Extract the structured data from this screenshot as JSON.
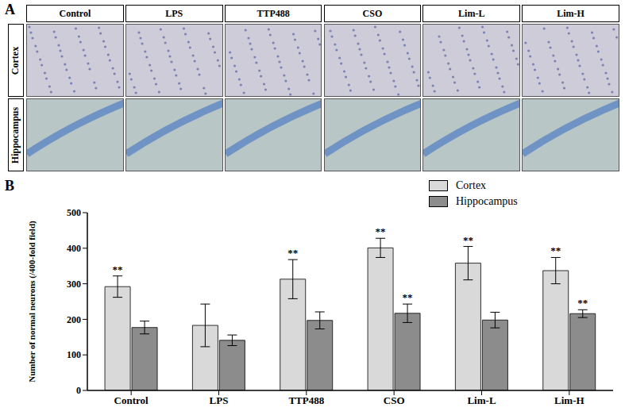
{
  "panel_a": {
    "letter": "A",
    "columns": [
      "Control",
      "LPS",
      "TTP488",
      "CSO",
      "Lim-L",
      "Lim-H"
    ],
    "rows": [
      "Cortex",
      "Hippocampus"
    ]
  },
  "chart_data": {
    "letter": "B",
    "type": "bar",
    "categories": [
      "Control",
      "LPS",
      "TTP488",
      "CSO",
      "Lim-L",
      "Lim-H"
    ],
    "y_label": "Number of normal neurons (/400-fold field)",
    "ylim": [
      0,
      500
    ],
    "yticks": [
      0,
      100,
      200,
      300,
      400,
      500
    ],
    "legend": "top-right",
    "series": [
      {
        "name": "Cortex",
        "color": "#d9d9d9",
        "values": [
          292,
          183,
          313,
          401,
          358,
          337
        ],
        "errors": [
          30,
          60,
          55,
          27,
          47,
          37
        ],
        "significance": [
          "**",
          null,
          "**",
          "**",
          "**",
          "**"
        ]
      },
      {
        "name": "Hippocampus",
        "color": "#8c8c8c",
        "values": [
          177,
          141,
          197,
          217,
          198,
          216
        ],
        "errors": [
          18,
          15,
          24,
          26,
          22,
          11
        ],
        "significance": [
          null,
          null,
          null,
          "**",
          null,
          "**"
        ]
      }
    ]
  }
}
